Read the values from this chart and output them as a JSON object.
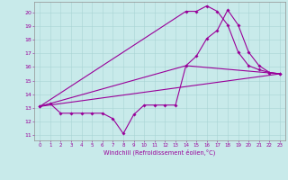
{
  "xlabel": "Windchill (Refroidissement éolien,°C)",
  "bg_color": "#c8eaea",
  "grid_color": "#a8d4d4",
  "line_color": "#990099",
  "xlim": [
    -0.5,
    23.5
  ],
  "ylim": [
    10.6,
    20.8
  ],
  "xticks": [
    0,
    1,
    2,
    3,
    4,
    5,
    6,
    7,
    8,
    9,
    10,
    11,
    12,
    13,
    14,
    15,
    16,
    17,
    18,
    19,
    20,
    21,
    22,
    23
  ],
  "yticks": [
    11,
    12,
    13,
    14,
    15,
    16,
    17,
    18,
    19,
    20
  ],
  "line1_x": [
    0,
    1,
    2,
    3,
    4,
    5,
    6,
    7,
    8,
    9,
    10,
    11,
    12,
    13,
    14,
    15,
    16,
    17,
    18,
    19,
    20,
    21,
    22,
    23
  ],
  "line1_y": [
    13.1,
    13.3,
    12.6,
    12.6,
    12.6,
    12.6,
    12.6,
    12.2,
    11.1,
    12.5,
    13.2,
    13.2,
    13.2,
    13.2,
    16.1,
    16.8,
    18.1,
    18.7,
    20.2,
    19.1,
    17.1,
    16.1,
    15.6,
    15.5
  ],
  "line2_x": [
    0,
    14,
    15,
    16,
    17,
    18,
    19,
    20,
    21,
    22,
    23
  ],
  "line2_y": [
    13.1,
    20.1,
    20.1,
    20.5,
    20.1,
    19.1,
    17.1,
    16.1,
    15.8,
    15.6,
    15.5
  ],
  "line3_x": [
    0,
    23
  ],
  "line3_y": [
    13.1,
    15.5
  ],
  "line4_x": [
    0,
    14,
    23
  ],
  "line4_y": [
    13.1,
    16.1,
    15.5
  ]
}
